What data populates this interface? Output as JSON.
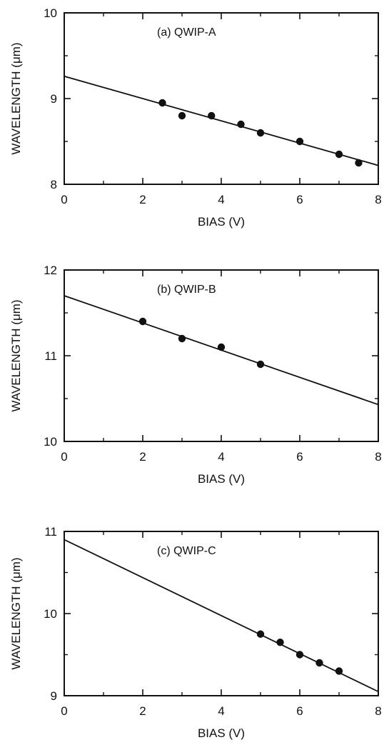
{
  "colors": {
    "ink": "#111111",
    "background": "#ffffff"
  },
  "chart_data": [
    {
      "type": "scatter",
      "title": "(a) QWIP-A",
      "xlabel": "BIAS  (V)",
      "ylabel": "WAVELENGTH (μm)",
      "xlim": [
        0,
        8
      ],
      "ylim": [
        8,
        10
      ],
      "xticks": [
        "0",
        "2",
        "4",
        "6",
        "8"
      ],
      "yticks": [
        "8",
        "9",
        "10"
      ],
      "grid": false,
      "points": [
        {
          "x": 2.5,
          "y": 8.95
        },
        {
          "x": 3.0,
          "y": 8.8
        },
        {
          "x": 3.75,
          "y": 8.8
        },
        {
          "x": 4.5,
          "y": 8.7
        },
        {
          "x": 5.0,
          "y": 8.6
        },
        {
          "x": 6.0,
          "y": 8.5
        },
        {
          "x": 7.0,
          "y": 8.35
        },
        {
          "x": 7.5,
          "y": 8.25
        }
      ],
      "fit_line": {
        "x": [
          0,
          8
        ],
        "y": [
          9.26,
          8.22
        ]
      }
    },
    {
      "type": "scatter",
      "title": "(b) QWIP-B",
      "xlabel": "BIAS  (V)",
      "ylabel": "WAVELENGTH (μm)",
      "xlim": [
        0,
        8
      ],
      "ylim": [
        10,
        12
      ],
      "xticks": [
        "0",
        "2",
        "4",
        "6",
        "8"
      ],
      "yticks": [
        "10",
        "11",
        "12"
      ],
      "grid": false,
      "points": [
        {
          "x": 2.0,
          "y": 11.4
        },
        {
          "x": 3.0,
          "y": 11.2
        },
        {
          "x": 4.0,
          "y": 11.1
        },
        {
          "x": 5.0,
          "y": 10.9
        }
      ],
      "fit_line": {
        "x": [
          0,
          8
        ],
        "y": [
          11.7,
          10.43
        ]
      }
    },
    {
      "type": "scatter",
      "title": "(c) QWIP-C",
      "xlabel": "BIAS  (V)",
      "ylabel": "WAVELENGTH (μm)",
      "xlim": [
        0,
        8
      ],
      "ylim": [
        9,
        11
      ],
      "xticks": [
        "0",
        "2",
        "4",
        "6",
        "8"
      ],
      "yticks": [
        "9",
        "10",
        "11"
      ],
      "grid": false,
      "points": [
        {
          "x": 5.0,
          "y": 9.75
        },
        {
          "x": 5.5,
          "y": 9.65
        },
        {
          "x": 6.0,
          "y": 9.5
        },
        {
          "x": 6.5,
          "y": 9.4
        },
        {
          "x": 7.0,
          "y": 9.3
        }
      ],
      "fit_line": {
        "x": [
          0,
          8
        ],
        "y": [
          10.9,
          9.05
        ]
      }
    }
  ]
}
